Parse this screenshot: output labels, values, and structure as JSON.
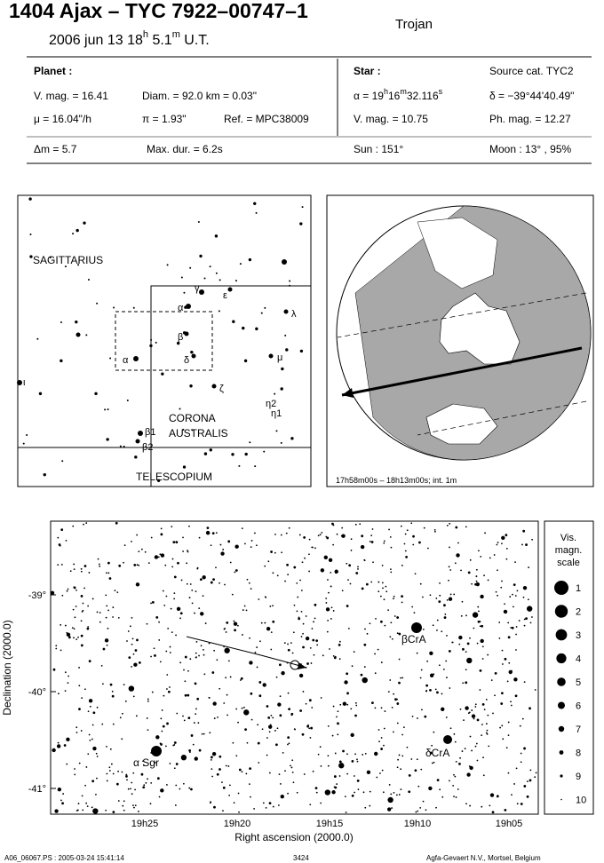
{
  "header": {
    "title": "1404 Ajax  –  TYC 7922–00747–1",
    "date": "2006 jun 13  18",
    "h": "h",
    "minute": " 5.1",
    "m": "m",
    "ut": " U.T.",
    "class": "Trojan"
  },
  "info": {
    "planet": "Planet :",
    "vmag": "V. mag. = 16.41",
    "diam": "Diam. = 92.0 km = 0.03\"",
    "mu": "μ =  16.04\"/h",
    "pi": "π =  1.93\"",
    "ref": "Ref. = MPC38009",
    "star": "Star :",
    "source": "Source cat.  TYC2",
    "ra": [
      "α = 19",
      "h",
      "16",
      "m",
      "32.116",
      "s"
    ],
    "dec": "δ = −39°44'40.49\"",
    "star_vmag": "V. mag. = 10.75",
    "phmag": "Ph. mag. = 12.27",
    "dm": "Δm = 5.7",
    "maxdur": "Max. dur. = 6.2s",
    "sun": "Sun : 151°",
    "moon": "Moon :  13° , 95%"
  },
  "finder": {
    "constellations": [
      "SAGITTARIUS",
      "CORONA",
      "AUSTRALIS",
      "TELESCOPIUM"
    ],
    "labels": [
      "γ",
      "α",
      "ε",
      "λ",
      "β",
      "α",
      "δ",
      "μ",
      "ζ",
      "η2",
      "η1",
      "β1",
      "β2",
      "ι"
    ]
  },
  "globe": {
    "caption": "17h58m00s – 18h13m00s; int.  1m"
  },
  "chart": {
    "yticks": [
      "-39°",
      "-40°",
      "-41°"
    ],
    "xticks": [
      "19h25",
      "19h20",
      "19h15",
      "19h10",
      "19h05"
    ],
    "xlabel": "Right ascension (2000.0)",
    "ylabel": "Declination (2000.0)",
    "stars": [
      "α Sgr",
      "βCrA",
      "δCrA"
    ]
  },
  "scale": {
    "title": [
      "Vis.",
      "magn.",
      "scale"
    ],
    "mags": [
      "1",
      "2",
      "3",
      "4",
      "5",
      "6",
      "7",
      "8",
      "9",
      "10"
    ]
  },
  "footer": {
    "file": "A06_06067.PS : 2005-03-24 15:41:14",
    "page": "3424",
    "company": "Agfa-Gevaert N.V., Mortsel, Belgium"
  }
}
